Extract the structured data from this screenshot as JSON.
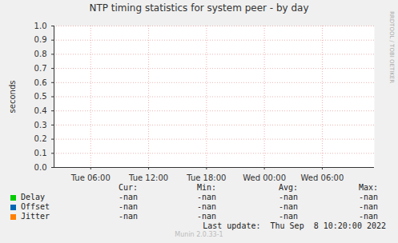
{
  "chart_data": {
    "type": "line",
    "title": "NTP timing statistics for system peer - by day",
    "y_label": "seconds",
    "x": [
      6,
      12,
      18,
      24,
      30
    ],
    "xlim": [
      2.2,
      35.4
    ],
    "xticks": [
      {
        "value": 6,
        "label": "Tue 06:00"
      },
      {
        "value": 12,
        "label": "Tue 12:00"
      },
      {
        "value": 18,
        "label": "Tue 18:00"
      },
      {
        "value": 24,
        "label": "Wed 00:00"
      },
      {
        "value": 30,
        "label": "Wed 06:00"
      }
    ],
    "ylim": [
      0,
      1
    ],
    "yticks": [
      {
        "value": 0,
        "label": "0.0"
      },
      0.1,
      0.2,
      0.3,
      0.4,
      0.5,
      0.6,
      0.7,
      0.8,
      0.9,
      {
        "value": 1,
        "label": "1.0"
      }
    ],
    "grid": true,
    "series": [
      {
        "name": "Delay",
        "color": "#00cc00",
        "values": [
          null,
          null,
          null,
          null,
          null
        ],
        "stats": [
          "-nan",
          "-nan",
          "-nan",
          "-nan"
        ]
      },
      {
        "name": "Offset",
        "color": "#0066b3",
        "values": [
          null,
          null,
          null,
          null,
          null
        ],
        "stats": [
          "-nan",
          "-nan",
          "-nan",
          "-nan"
        ]
      },
      {
        "name": "Jitter",
        "color": "#ff8000",
        "values": [
          null,
          null,
          null,
          null,
          null
        ],
        "stats": [
          "-nan",
          "-nan",
          "-nan",
          "-nan"
        ]
      }
    ],
    "stat_headers": [
      "Cur:",
      "Min:",
      "Avg:",
      "Max:"
    ],
    "footer": "Last update:  Thu Sep  8 10:20:00 2022",
    "credit": "Munin 2.0.33-1",
    "side_text": "RRDTOOL / TOBI OETIKER"
  }
}
